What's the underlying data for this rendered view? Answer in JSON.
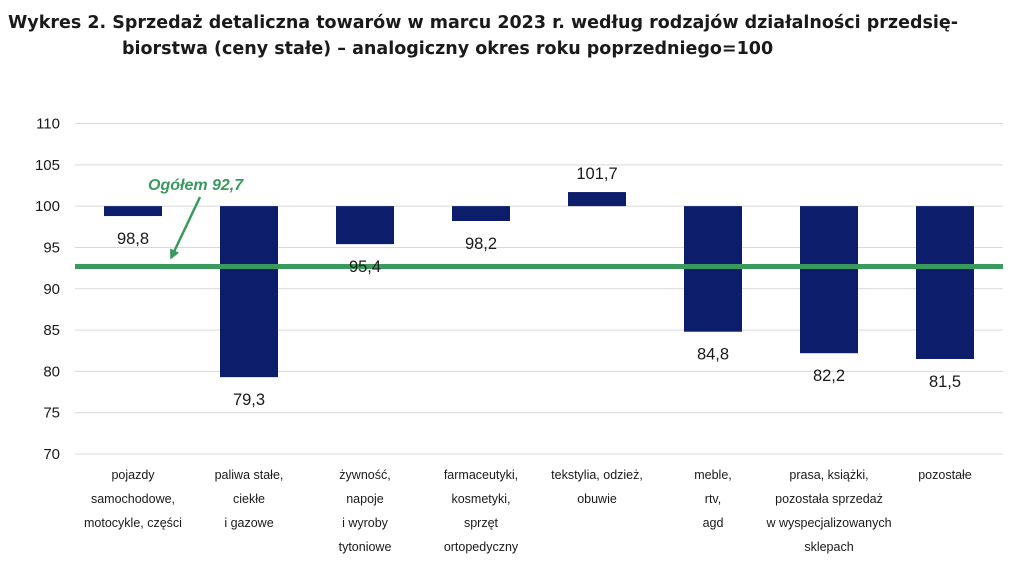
{
  "title_line1": "Wykres 2. Sprzedaż detaliczna towarów w marcu 2023 r. według rodzajów działalności przedsię-",
  "title_line2": "biorstwa (ceny stałe) – analogiczny okres roku poprzedniego=100",
  "colors": {
    "bar": "#0c1d6b",
    "reference": "#3a9a5e",
    "grid": "#d9d9d9"
  },
  "chart_data": {
    "type": "bar",
    "baseline": 100,
    "ylim": [
      70,
      110
    ],
    "yticks": [
      70,
      75,
      80,
      85,
      90,
      95,
      100,
      105,
      110
    ],
    "grid": true,
    "categories": [
      [
        "pojazdy",
        "samochodowe,",
        "motocykle, części"
      ],
      [
        "paliwa stałe,",
        "ciekłe",
        "i gazowe"
      ],
      [
        "żywność,",
        "napoje",
        "i wyroby",
        "tytoniowe"
      ],
      [
        "farmaceutyki,",
        "kosmetyki,",
        "sprzęt",
        "ortopedyczny"
      ],
      [
        "tekstylia, odzież,",
        "obuwie"
      ],
      [
        "meble,",
        "rtv,",
        "agd"
      ],
      [
        "prasa, książki,",
        "pozostała sprzedaż",
        "w wyspecjalizowanych",
        "sklepach"
      ],
      [
        "pozostałe"
      ]
    ],
    "values": [
      98.8,
      79.3,
      95.4,
      98.2,
      101.7,
      84.8,
      82.2,
      81.5
    ],
    "labels": [
      "98,8",
      "79,3",
      "95,4",
      "98,2",
      "101,7",
      "84,8",
      "82,2",
      "81,5"
    ],
    "reference": {
      "value": 92.7,
      "label": "Ogółem 92,7"
    }
  }
}
